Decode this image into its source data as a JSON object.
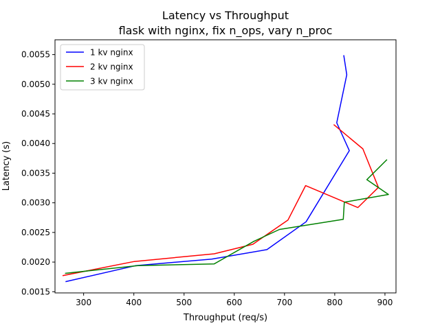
{
  "chart_data": {
    "type": "line",
    "title": "Latency vs Throughput",
    "subtitle": "flask with nginx, fix n_ops, vary n_proc",
    "xlabel": "Throughput (req/s)",
    "ylabel": "Latency (s)",
    "xlim": [
      243,
      922
    ],
    "ylim": [
      0.00148,
      0.00575
    ],
    "xticks": [
      300,
      400,
      500,
      600,
      700,
      800,
      900
    ],
    "yticks": [
      0.0015,
      0.002,
      0.0025,
      0.003,
      0.0035,
      0.004,
      0.0045,
      0.005,
      0.0055
    ],
    "xtick_labels": [
      "300",
      "400",
      "500",
      "600",
      "700",
      "800",
      "900"
    ],
    "ytick_labels": [
      "0.0015",
      "0.0020",
      "0.0025",
      "0.0030",
      "0.0035",
      "0.0040",
      "0.0045",
      "0.0050",
      "0.0055"
    ],
    "grid": false,
    "legend_position": "upper-left",
    "series": [
      {
        "name": "1 kv nginx",
        "color": "#0000ff",
        "points": [
          [
            264,
            0.00167
          ],
          [
            404,
            0.00194
          ],
          [
            555,
            0.00205
          ],
          [
            665,
            0.00221
          ],
          [
            743,
            0.00268
          ],
          [
            829,
            0.00388
          ],
          [
            804,
            0.00435
          ],
          [
            824,
            0.00516
          ],
          [
            818,
            0.00549
          ]
        ]
      },
      {
        "name": "2 kv nginx",
        "color": "#ff0000",
        "points": [
          [
            258,
            0.00177
          ],
          [
            401,
            0.00201
          ],
          [
            560,
            0.00214
          ],
          [
            637,
            0.0023
          ],
          [
            707,
            0.00271
          ],
          [
            742,
            0.00329
          ],
          [
            846,
            0.00292
          ],
          [
            887,
            0.00326
          ],
          [
            856,
            0.00391
          ],
          [
            798,
            0.00432
          ]
        ]
      },
      {
        "name": "3 kv nginx",
        "color": "#008000",
        "points": [
          [
            263,
            0.00181
          ],
          [
            408,
            0.00194
          ],
          [
            560,
            0.00197
          ],
          [
            639,
            0.00235
          ],
          [
            690,
            0.00255
          ],
          [
            817,
            0.00272
          ],
          [
            819,
            0.00301
          ],
          [
            907,
            0.00314
          ],
          [
            888,
            0.00325
          ],
          [
            864,
            0.00339
          ],
          [
            904,
            0.00373
          ]
        ]
      }
    ]
  }
}
